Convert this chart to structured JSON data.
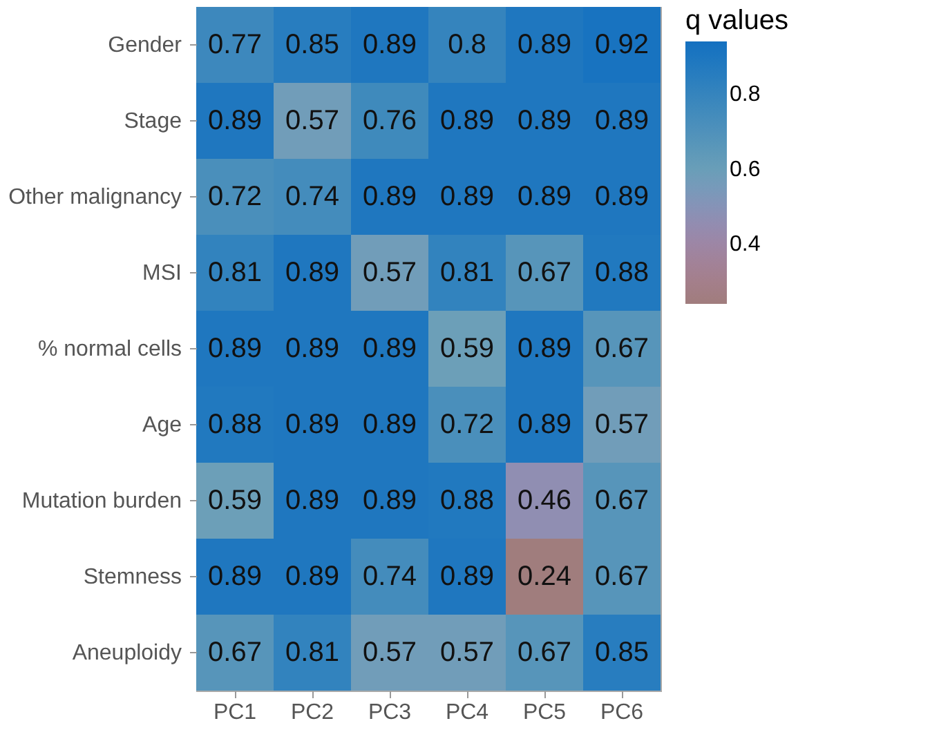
{
  "chart_data": {
    "type": "heatmap",
    "legend_title": "q values",
    "categories": [
      "PC1",
      "PC2",
      "PC3",
      "PC4",
      "PC5",
      "PC6"
    ],
    "y_categories": [
      "Gender",
      "Stage",
      "Other malignancy",
      "MSI",
      "% normal cells",
      "Age",
      "Mutation burden",
      "Stemness",
      "Aneuploidy"
    ],
    "cells": [
      [
        0.77,
        0.85,
        0.89,
        0.8,
        0.89,
        0.92
      ],
      [
        0.89,
        0.57,
        0.76,
        0.89,
        0.89,
        0.89
      ],
      [
        0.72,
        0.74,
        0.89,
        0.89,
        0.89,
        0.89
      ],
      [
        0.81,
        0.89,
        0.57,
        0.81,
        0.67,
        0.88
      ],
      [
        0.89,
        0.89,
        0.89,
        0.59,
        0.89,
        0.67
      ],
      [
        0.88,
        0.89,
        0.89,
        0.72,
        0.89,
        0.57
      ],
      [
        0.59,
        0.89,
        0.89,
        0.88,
        0.46,
        0.67
      ],
      [
        0.89,
        0.89,
        0.74,
        0.89,
        0.24,
        0.67
      ],
      [
        0.67,
        0.81,
        0.57,
        0.57,
        0.67,
        0.85
      ]
    ],
    "data_labels": true,
    "clim": [
      0.24,
      0.94
    ],
    "cticks": [
      0.4,
      0.6,
      0.8
    ]
  }
}
